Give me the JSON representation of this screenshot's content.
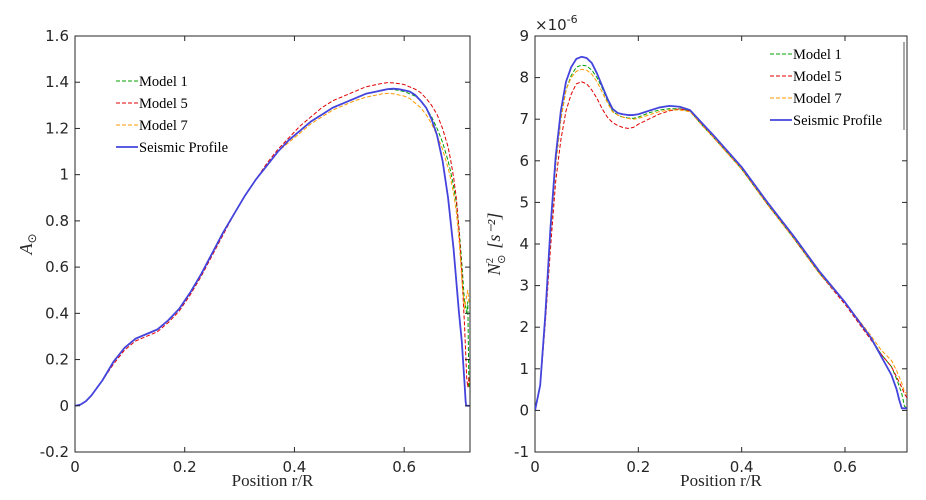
{
  "chart_data": [
    {
      "type": "line",
      "id": "left",
      "xlabel": "Position r/R",
      "ylabel": "A",
      "ylabel_sub": "⊙",
      "xlim": [
        0,
        0.72
      ],
      "ylim": [
        -0.2,
        1.6
      ],
      "xticks": [
        0,
        0.2,
        0.4,
        0.6
      ],
      "xtick_labels": [
        "0",
        "0.2",
        "0.4",
        "0.6"
      ],
      "yticks": [
        -0.2,
        0,
        0.2,
        0.4,
        0.6,
        0.8,
        1.0,
        1.2,
        1.4,
        1.6
      ],
      "ytick_labels": [
        "-0.2",
        "0",
        "0.2",
        "0.4",
        "0.6",
        "0.8",
        "1",
        "1.2",
        "1.4",
        "1.6"
      ],
      "legend_position": "upper-left",
      "series": [
        {
          "name": "Model 1",
          "color": "#00a000",
          "dash": "4,2",
          "width": 1,
          "x": [
            0,
            0.01,
            0.02,
            0.03,
            0.05,
            0.07,
            0.09,
            0.11,
            0.13,
            0.15,
            0.17,
            0.19,
            0.21,
            0.23,
            0.25,
            0.27,
            0.29,
            0.31,
            0.33,
            0.35,
            0.37,
            0.39,
            0.41,
            0.43,
            0.45,
            0.47,
            0.49,
            0.51,
            0.53,
            0.55,
            0.56,
            0.57,
            0.58,
            0.59,
            0.6,
            0.61,
            0.62,
            0.63,
            0.64,
            0.65,
            0.66,
            0.67,
            0.68,
            0.685,
            0.69,
            0.695,
            0.7,
            0.705,
            0.71,
            0.714,
            0.716,
            0.718,
            0.72
          ],
          "y": [
            0,
            0.005,
            0.02,
            0.045,
            0.11,
            0.19,
            0.25,
            0.29,
            0.31,
            0.33,
            0.37,
            0.42,
            0.49,
            0.57,
            0.66,
            0.75,
            0.83,
            0.91,
            0.98,
            1.04,
            1.1,
            1.15,
            1.19,
            1.23,
            1.26,
            1.29,
            1.31,
            1.33,
            1.35,
            1.36,
            1.365,
            1.37,
            1.368,
            1.365,
            1.36,
            1.35,
            1.34,
            1.32,
            1.29,
            1.25,
            1.2,
            1.14,
            1.06,
            1.01,
            0.95,
            0.88,
            0.77,
            0.62,
            0.45,
            0.4,
            0.45,
            0.08,
            0.1
          ]
        },
        {
          "name": "Model 5",
          "color": "#e00000",
          "dash": "4,2",
          "width": 1,
          "x": [
            0,
            0.01,
            0.02,
            0.03,
            0.05,
            0.07,
            0.09,
            0.11,
            0.13,
            0.15,
            0.17,
            0.19,
            0.21,
            0.23,
            0.25,
            0.27,
            0.29,
            0.31,
            0.33,
            0.35,
            0.37,
            0.39,
            0.41,
            0.43,
            0.45,
            0.47,
            0.49,
            0.51,
            0.53,
            0.55,
            0.56,
            0.57,
            0.58,
            0.59,
            0.6,
            0.61,
            0.62,
            0.63,
            0.64,
            0.65,
            0.66,
            0.67,
            0.68,
            0.685,
            0.69,
            0.695,
            0.7,
            0.705,
            0.71,
            0.714,
            0.716,
            0.718,
            0.72
          ],
          "y": [
            0,
            0.005,
            0.02,
            0.045,
            0.11,
            0.18,
            0.24,
            0.28,
            0.3,
            0.32,
            0.36,
            0.41,
            0.48,
            0.56,
            0.65,
            0.74,
            0.83,
            0.91,
            0.98,
            1.05,
            1.11,
            1.16,
            1.21,
            1.25,
            1.29,
            1.32,
            1.34,
            1.36,
            1.38,
            1.39,
            1.395,
            1.398,
            1.397,
            1.394,
            1.39,
            1.38,
            1.37,
            1.355,
            1.33,
            1.3,
            1.26,
            1.2,
            1.12,
            1.06,
            0.99,
            0.9,
            0.76,
            0.58,
            0.35,
            0.12,
            0.08,
            0.12,
            0.1
          ]
        },
        {
          "name": "Model 7",
          "color": "#ff9900",
          "dash": "4,2",
          "width": 1,
          "x": [
            0,
            0.01,
            0.02,
            0.03,
            0.05,
            0.07,
            0.09,
            0.11,
            0.13,
            0.15,
            0.17,
            0.19,
            0.21,
            0.23,
            0.25,
            0.27,
            0.29,
            0.31,
            0.33,
            0.35,
            0.37,
            0.39,
            0.41,
            0.43,
            0.45,
            0.47,
            0.49,
            0.51,
            0.53,
            0.55,
            0.56,
            0.57,
            0.58,
            0.59,
            0.6,
            0.61,
            0.62,
            0.63,
            0.64,
            0.65,
            0.66,
            0.67,
            0.68,
            0.685,
            0.69,
            0.695,
            0.7,
            0.705,
            0.71,
            0.714,
            0.716,
            0.718,
            0.72
          ],
          "y": [
            0,
            0.005,
            0.02,
            0.045,
            0.11,
            0.19,
            0.25,
            0.29,
            0.31,
            0.33,
            0.37,
            0.42,
            0.49,
            0.57,
            0.66,
            0.75,
            0.83,
            0.91,
            0.98,
            1.04,
            1.1,
            1.14,
            1.18,
            1.22,
            1.25,
            1.28,
            1.3,
            1.32,
            1.335,
            1.345,
            1.35,
            1.352,
            1.35,
            1.345,
            1.34,
            1.33,
            1.31,
            1.29,
            1.26,
            1.22,
            1.17,
            1.11,
            1.03,
            0.98,
            0.92,
            0.84,
            0.72,
            0.55,
            0.42,
            0.48,
            0.5,
            0.45,
            0.46
          ]
        },
        {
          "name": "Seismic Profile",
          "color": "#4444dd",
          "dash": "",
          "width": 1.8,
          "x": [
            0,
            0.01,
            0.02,
            0.03,
            0.05,
            0.07,
            0.09,
            0.11,
            0.13,
            0.15,
            0.17,
            0.19,
            0.21,
            0.23,
            0.25,
            0.27,
            0.29,
            0.31,
            0.33,
            0.35,
            0.37,
            0.39,
            0.41,
            0.43,
            0.45,
            0.47,
            0.49,
            0.51,
            0.53,
            0.55,
            0.56,
            0.57,
            0.58,
            0.59,
            0.6,
            0.61,
            0.62,
            0.63,
            0.64,
            0.65,
            0.66,
            0.67,
            0.68,
            0.69,
            0.7,
            0.705,
            0.71,
            0.712,
            0.713,
            0.72
          ],
          "y": [
            0,
            0.005,
            0.02,
            0.045,
            0.11,
            0.19,
            0.25,
            0.29,
            0.31,
            0.33,
            0.37,
            0.42,
            0.49,
            0.57,
            0.66,
            0.75,
            0.83,
            0.91,
            0.98,
            1.04,
            1.1,
            1.15,
            1.19,
            1.23,
            1.26,
            1.29,
            1.31,
            1.33,
            1.35,
            1.36,
            1.365,
            1.37,
            1.372,
            1.37,
            1.365,
            1.36,
            1.345,
            1.32,
            1.29,
            1.24,
            1.17,
            1.06,
            0.9,
            0.68,
            0.4,
            0.28,
            0.1,
            0.02,
            0,
            0
          ]
        }
      ]
    },
    {
      "type": "line",
      "id": "right",
      "xlabel": "Position r/R",
      "ylabel": "N",
      "ylabel_sup": "2",
      "ylabel_sub": "⊙",
      "ylabel_unit": "[s⁻²]",
      "exponent_label": "×10",
      "exponent_power": "-6",
      "xlim": [
        0,
        0.72
      ],
      "ylim": [
        -1,
        9
      ],
      "xticks": [
        0,
        0.2,
        0.4,
        0.6
      ],
      "xtick_labels": [
        "0",
        "0.2",
        "0.4",
        "0.6"
      ],
      "yticks": [
        -1,
        0,
        1,
        2,
        3,
        4,
        5,
        6,
        7,
        8,
        9
      ],
      "ytick_labels": [
        "-1",
        "0",
        "1",
        "2",
        "3",
        "4",
        "5",
        "6",
        "7",
        "8",
        "9"
      ],
      "legend_position": "upper-right",
      "series": [
        {
          "name": "Model 1",
          "color": "#00a000",
          "dash": "4,2",
          "width": 1,
          "x": [
            0,
            0.01,
            0.02,
            0.03,
            0.04,
            0.05,
            0.06,
            0.07,
            0.08,
            0.09,
            0.1,
            0.11,
            0.12,
            0.13,
            0.14,
            0.15,
            0.16,
            0.17,
            0.18,
            0.19,
            0.2,
            0.22,
            0.24,
            0.26,
            0.28,
            0.3,
            0.32,
            0.35,
            0.4,
            0.45,
            0.5,
            0.55,
            0.6,
            0.65,
            0.67,
            0.69,
            0.7,
            0.71,
            0.715,
            0.72
          ],
          "y": [
            0,
            0.6,
            2.2,
            4.2,
            5.9,
            7.0,
            7.7,
            8.05,
            8.25,
            8.3,
            8.28,
            8.18,
            8.0,
            7.75,
            7.45,
            7.2,
            7.1,
            7.05,
            7.03,
            7.02,
            7.05,
            7.15,
            7.22,
            7.25,
            7.25,
            7.2,
            6.9,
            6.5,
            5.8,
            4.95,
            4.15,
            3.3,
            2.6,
            1.75,
            1.35,
            1.05,
            0.75,
            0.4,
            0.1,
            0.05
          ]
        },
        {
          "name": "Model 5",
          "color": "#e00000",
          "dash": "4,2",
          "width": 1,
          "x": [
            0,
            0.01,
            0.02,
            0.03,
            0.04,
            0.05,
            0.06,
            0.07,
            0.08,
            0.09,
            0.1,
            0.11,
            0.12,
            0.13,
            0.14,
            0.15,
            0.16,
            0.17,
            0.18,
            0.19,
            0.2,
            0.22,
            0.24,
            0.26,
            0.28,
            0.3,
            0.32,
            0.35,
            0.4,
            0.45,
            0.5,
            0.55,
            0.6,
            0.65,
            0.67,
            0.69,
            0.7,
            0.71,
            0.715,
            0.72
          ],
          "y": [
            0,
            0.6,
            2.1,
            3.9,
            5.5,
            6.5,
            7.2,
            7.6,
            7.85,
            7.9,
            7.85,
            7.7,
            7.5,
            7.25,
            7.05,
            6.92,
            6.85,
            6.8,
            6.78,
            6.8,
            6.88,
            7.0,
            7.12,
            7.2,
            7.25,
            7.2,
            6.92,
            6.5,
            5.8,
            4.95,
            4.15,
            3.3,
            2.55,
            1.7,
            1.35,
            1.05,
            0.8,
            0.55,
            0.4,
            0.3
          ]
        },
        {
          "name": "Model 7",
          "color": "#ff9900",
          "dash": "4,2",
          "width": 1,
          "x": [
            0,
            0.01,
            0.02,
            0.03,
            0.04,
            0.05,
            0.06,
            0.07,
            0.08,
            0.09,
            0.1,
            0.11,
            0.12,
            0.13,
            0.14,
            0.15,
            0.16,
            0.17,
            0.18,
            0.19,
            0.2,
            0.22,
            0.24,
            0.26,
            0.28,
            0.3,
            0.32,
            0.35,
            0.4,
            0.45,
            0.5,
            0.55,
            0.6,
            0.65,
            0.67,
            0.69,
            0.7,
            0.71,
            0.715,
            0.72
          ],
          "y": [
            0,
            0.6,
            2.2,
            4.2,
            5.9,
            7.0,
            7.7,
            8.0,
            8.15,
            8.2,
            8.18,
            8.08,
            7.9,
            7.65,
            7.4,
            7.18,
            7.1,
            7.05,
            7.02,
            7.0,
            7.02,
            7.1,
            7.18,
            7.22,
            7.22,
            7.18,
            6.9,
            6.5,
            5.8,
            4.95,
            4.15,
            3.3,
            2.6,
            1.8,
            1.45,
            1.2,
            0.95,
            0.65,
            0.45,
            0.4
          ]
        },
        {
          "name": "Seismic Profile",
          "color": "#4444dd",
          "dash": "",
          "width": 1.8,
          "x": [
            0,
            0.01,
            0.02,
            0.03,
            0.04,
            0.05,
            0.06,
            0.07,
            0.08,
            0.09,
            0.1,
            0.11,
            0.12,
            0.13,
            0.14,
            0.15,
            0.16,
            0.17,
            0.18,
            0.19,
            0.2,
            0.22,
            0.24,
            0.26,
            0.28,
            0.3,
            0.32,
            0.35,
            0.4,
            0.45,
            0.5,
            0.55,
            0.6,
            0.65,
            0.67,
            0.69,
            0.7,
            0.705,
            0.71,
            0.72
          ],
          "y": [
            0,
            0.6,
            2.3,
            4.4,
            6.1,
            7.2,
            7.9,
            8.25,
            8.45,
            8.5,
            8.47,
            8.35,
            8.1,
            7.8,
            7.5,
            7.25,
            7.15,
            7.12,
            7.1,
            7.1,
            7.12,
            7.2,
            7.28,
            7.32,
            7.3,
            7.22,
            6.95,
            6.55,
            5.85,
            5.0,
            4.2,
            3.35,
            2.6,
            1.75,
            1.3,
            0.85,
            0.5,
            0.25,
            0.05,
            0.05
          ]
        }
      ]
    }
  ]
}
